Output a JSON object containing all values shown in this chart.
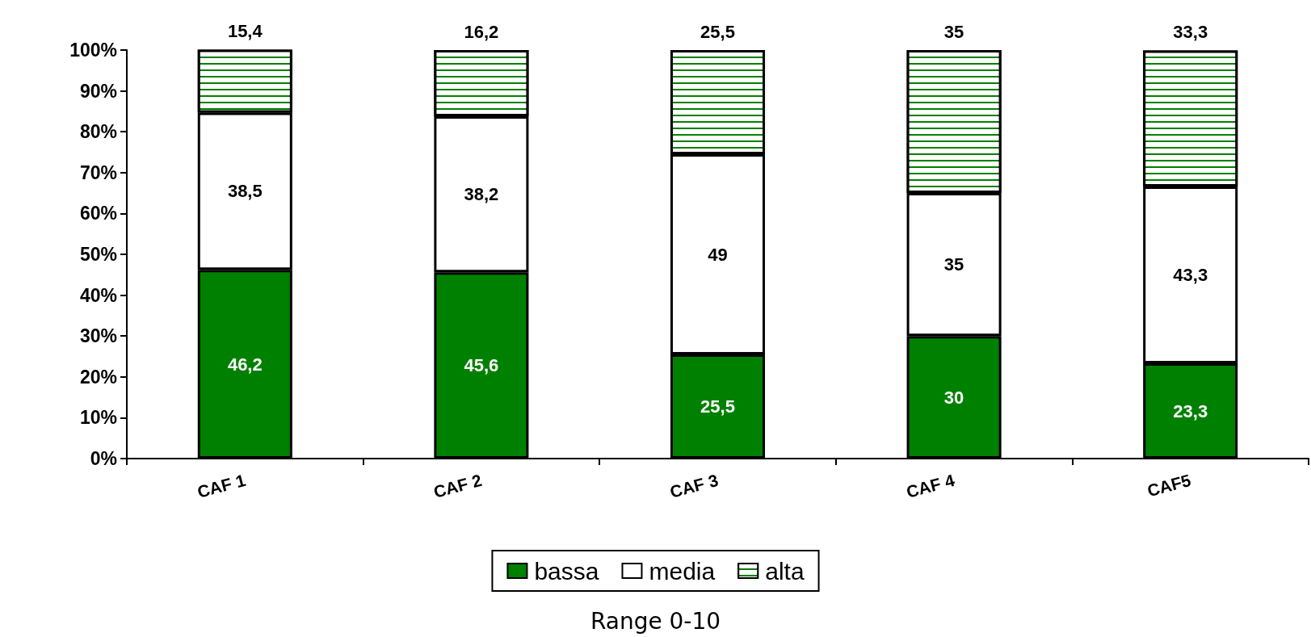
{
  "chart_data": {
    "type": "bar",
    "stacked": true,
    "categories": [
      "CAF 1",
      "CAF 2",
      "CAF 3",
      "CAF 4",
      "CAF5"
    ],
    "series": [
      {
        "name": "bassa",
        "color": "#008000",
        "values": [
          46.2,
          45.6,
          25.5,
          30,
          23.3
        ],
        "value_labels": [
          "46,2",
          "45,6",
          "25,5",
          "30",
          "23,3"
        ]
      },
      {
        "name": "media",
        "color": "#ffffff",
        "values": [
          38.5,
          38.2,
          49,
          35,
          43.3
        ],
        "value_labels": [
          "38,5",
          "38,2",
          "49",
          "35",
          "43,3"
        ]
      },
      {
        "name": "alta",
        "color": "#008000",
        "values": [
          15.4,
          16.2,
          25.5,
          35,
          33.3
        ],
        "value_labels": [
          "15,4",
          "16,2",
          "25,5",
          "35",
          "33,3"
        ]
      }
    ],
    "ylim": [
      0,
      100
    ],
    "yticks": [
      {
        "value": 0,
        "label": "0%"
      },
      {
        "value": 10,
        "label": "10%"
      },
      {
        "value": 20,
        "label": "20%"
      },
      {
        "value": 30,
        "label": "30%"
      },
      {
        "value": 40,
        "label": "40%"
      },
      {
        "value": 50,
        "label": "50%"
      },
      {
        "value": 60,
        "label": "60%"
      },
      {
        "value": 70,
        "label": "70%"
      },
      {
        "value": 80,
        "label": "80%"
      },
      {
        "value": 90,
        "label": "90%"
      },
      {
        "value": 100,
        "label": "100%"
      }
    ],
    "grid": false,
    "legend": "bottom",
    "annotations": [
      "Range 0-10"
    ]
  }
}
